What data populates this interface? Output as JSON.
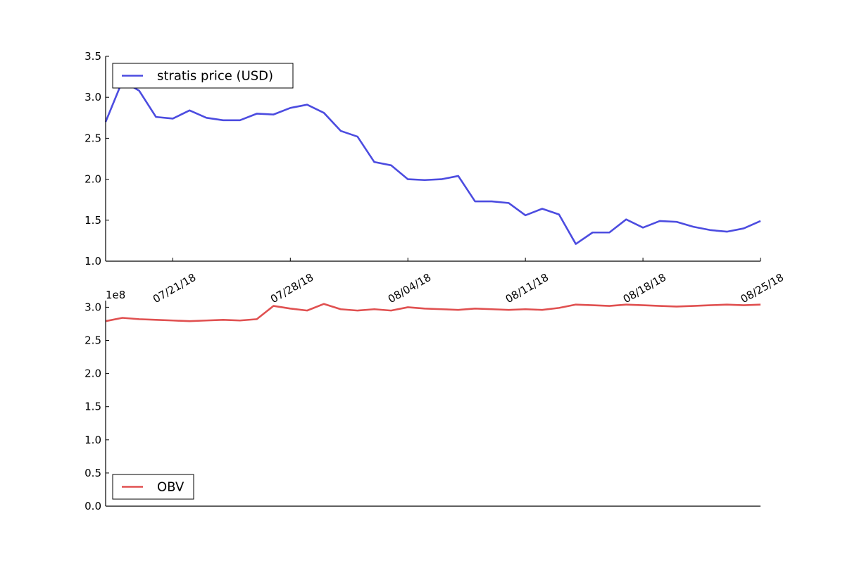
{
  "chart_data": [
    {
      "type": "line",
      "panel": "top",
      "title": "",
      "xlabel": "",
      "ylabel": "",
      "ylim": [
        1.0,
        3.5
      ],
      "yticks": [
        "1.0",
        "1.5",
        "2.0",
        "2.5",
        "3.0",
        "3.5"
      ],
      "xticks": [
        {
          "date": "2018-07-21",
          "label": "07/21/18"
        },
        {
          "date": "2018-07-28",
          "label": "07/28/18"
        },
        {
          "date": "2018-08-04",
          "label": "08/04/18"
        },
        {
          "date": "2018-08-11",
          "label": "08/11/18"
        },
        {
          "date": "2018-08-18",
          "label": "08/18/18"
        },
        {
          "date": "2018-08-25",
          "label": "08/25/18"
        }
      ],
      "xlim": [
        "2018-07-17",
        "2018-08-25"
      ],
      "legend_position": "top-left",
      "series": [
        {
          "name": "stratis price (USD)",
          "color": "#4c4ce0",
          "x": [
            "2018-07-17",
            "2018-07-18",
            "2018-07-19",
            "2018-07-20",
            "2018-07-21",
            "2018-07-22",
            "2018-07-23",
            "2018-07-24",
            "2018-07-25",
            "2018-07-26",
            "2018-07-27",
            "2018-07-28",
            "2018-07-29",
            "2018-07-30",
            "2018-07-31",
            "2018-08-01",
            "2018-08-02",
            "2018-08-03",
            "2018-08-04",
            "2018-08-05",
            "2018-08-06",
            "2018-08-07",
            "2018-08-08",
            "2018-08-09",
            "2018-08-10",
            "2018-08-11",
            "2018-08-12",
            "2018-08-13",
            "2018-08-14",
            "2018-08-15",
            "2018-08-16",
            "2018-08-17",
            "2018-08-18",
            "2018-08-19",
            "2018-08-20",
            "2018-08-21",
            "2018-08-22",
            "2018-08-23",
            "2018-08-24",
            "2018-08-25"
          ],
          "values": [
            2.7,
            3.2,
            3.08,
            2.76,
            2.74,
            2.84,
            2.75,
            2.72,
            2.72,
            2.8,
            2.79,
            2.87,
            2.91,
            2.81,
            2.59,
            2.52,
            2.21,
            2.17,
            2.0,
            1.99,
            2.0,
            2.04,
            1.73,
            1.73,
            1.71,
            1.56,
            1.64,
            1.57,
            1.21,
            1.35,
            1.35,
            1.51,
            1.41,
            1.49,
            1.48,
            1.42,
            1.38,
            1.36,
            1.4,
            1.49
          ]
        }
      ]
    },
    {
      "type": "line",
      "panel": "bottom",
      "title": "",
      "xlabel": "",
      "ylabel": "",
      "y_offset_label": "1e8",
      "ylim": [
        0.0,
        3.1
      ],
      "yticks": [
        "0.0",
        "0.5",
        "1.0",
        "1.5",
        "2.0",
        "2.5",
        "3.0"
      ],
      "xlim": [
        "2018-07-17",
        "2018-08-25"
      ],
      "legend_position": "bottom-left",
      "series": [
        {
          "name": "OBV",
          "color": "#e05050",
          "x": [
            "2018-07-17",
            "2018-07-18",
            "2018-07-19",
            "2018-07-20",
            "2018-07-21",
            "2018-07-22",
            "2018-07-23",
            "2018-07-24",
            "2018-07-25",
            "2018-07-26",
            "2018-07-27",
            "2018-07-28",
            "2018-07-29",
            "2018-07-30",
            "2018-07-31",
            "2018-08-01",
            "2018-08-02",
            "2018-08-03",
            "2018-08-04",
            "2018-08-05",
            "2018-08-06",
            "2018-08-07",
            "2018-08-08",
            "2018-08-09",
            "2018-08-10",
            "2018-08-11",
            "2018-08-12",
            "2018-08-13",
            "2018-08-14",
            "2018-08-15",
            "2018-08-16",
            "2018-08-17",
            "2018-08-18",
            "2018-08-19",
            "2018-08-20",
            "2018-08-21",
            "2018-08-22",
            "2018-08-23",
            "2018-08-24",
            "2018-08-25"
          ],
          "values": [
            2.79,
            2.84,
            2.82,
            2.81,
            2.8,
            2.79,
            2.8,
            2.81,
            2.8,
            2.82,
            3.02,
            2.98,
            2.95,
            3.05,
            2.97,
            2.95,
            2.97,
            2.95,
            3.0,
            2.98,
            2.97,
            2.96,
            2.98,
            2.97,
            2.96,
            2.97,
            2.96,
            2.99,
            3.04,
            3.03,
            3.02,
            3.04,
            3.03,
            3.02,
            3.01,
            3.02,
            3.03,
            3.04,
            3.03,
            3.04
          ]
        }
      ]
    }
  ]
}
